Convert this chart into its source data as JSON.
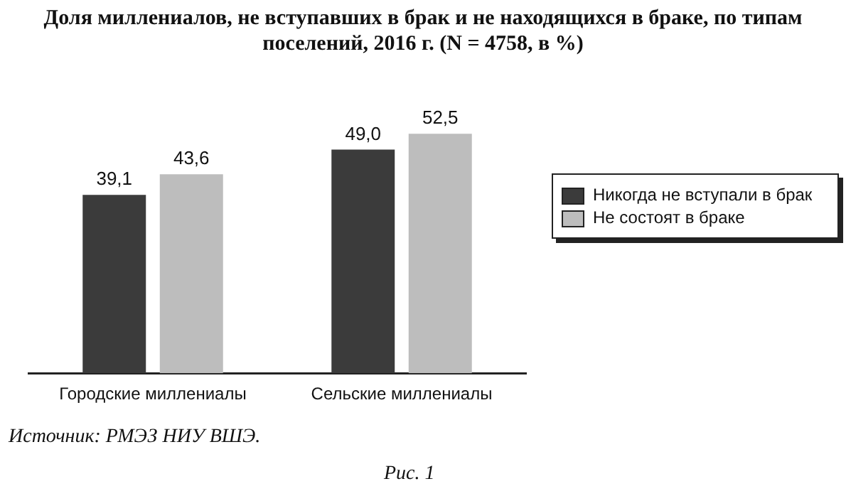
{
  "chart_data": {
    "type": "bar",
    "title": "Доля миллениалов, не вступавших в брак и не находящихся в браке, по типам поселений, 2016 г. (N = 4758, в %)",
    "categories": [
      "Городские миллениалы",
      "Сельские миллениалы"
    ],
    "series": [
      {
        "name": "Никогда не вступали в брак",
        "color": "#3b3b3b",
        "values": [
          39.1,
          49.0
        ],
        "value_labels": [
          "39,1",
          "49,0"
        ]
      },
      {
        "name": "Не состоят в браке",
        "color": "#bdbdbd",
        "values": [
          43.6,
          52.5
        ],
        "value_labels": [
          "43,6",
          "52,5"
        ]
      }
    ],
    "legend": "right",
    "grid": false,
    "annotations": [
      "Источник: РМЭЗ НИУ ВШЭ.",
      "Рис. 1"
    ]
  }
}
